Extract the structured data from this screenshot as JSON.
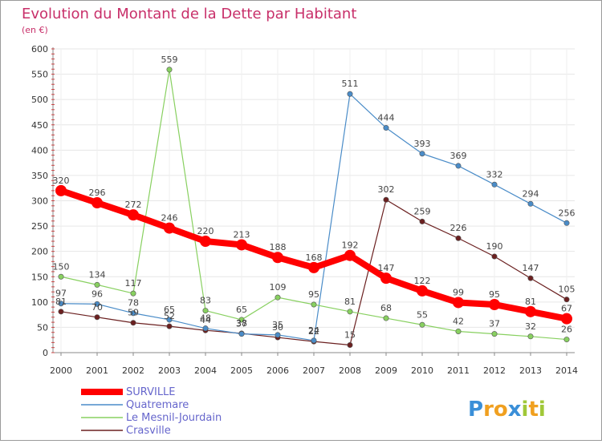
{
  "chart_data": {
    "type": "line",
    "title": "Evolution du Montant de la Dette par Habitant",
    "subtitle": "(en €)",
    "x": [
      "2000",
      "2001",
      "2002",
      "2003",
      "2004",
      "2005",
      "2006",
      "2007",
      "2008",
      "2009",
      "2010",
      "2011",
      "2012",
      "2013",
      "2014"
    ],
    "ylim": [
      0,
      600
    ],
    "yticks": [
      0,
      50,
      100,
      150,
      200,
      250,
      300,
      350,
      400,
      450,
      500,
      550,
      600
    ],
    "series": [
      {
        "name": "SURVILLE",
        "color": "#ff0000",
        "values": [
          320,
          296,
          272,
          246,
          220,
          213,
          188,
          168,
          192,
          147,
          122,
          99,
          95,
          81,
          67
        ]
      },
      {
        "name": "Quatremare",
        "color": "#4a8cc8",
        "values": [
          97,
          96,
          78,
          65,
          48,
          37,
          35,
          24,
          511,
          444,
          393,
          369,
          332,
          294,
          256
        ]
      },
      {
        "name": "Le Mesnil-Jourdain",
        "color": "#88d060",
        "values": [
          150,
          134,
          117,
          559,
          83,
          65,
          109,
          95,
          81,
          68,
          55,
          42,
          37,
          32,
          26
        ]
      },
      {
        "name": "Crasville",
        "color": "#6b2020",
        "values": [
          81,
          70,
          59,
          52,
          44,
          38,
          30,
          22,
          15,
          302,
          259,
          226,
          190,
          147,
          105
        ]
      }
    ],
    "grid": true,
    "legend": "bottom-left"
  },
  "logo": {
    "text": "Proxiti"
  }
}
